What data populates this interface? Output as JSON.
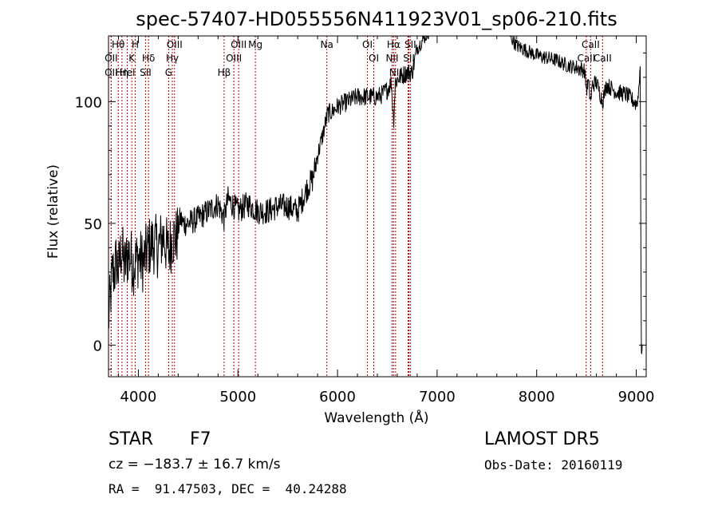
{
  "chart_data": {
    "type": "line",
    "title": "spec-57407-HD055556N411923V01_sp06-210.fits",
    "xlabel": "Wavelength (Å)",
    "ylabel": "Flux (relative)",
    "xlim": [
      3700,
      9100
    ],
    "ylim": [
      -13,
      127
    ],
    "xticks": [
      4000,
      5000,
      6000,
      7000,
      8000,
      9000
    ],
    "yticks": [
      0,
      50,
      100
    ],
    "grid": false,
    "series": [
      {
        "x": [
          3700,
          3720,
          3740,
          3760,
          3780,
          3800,
          3830,
          3860,
          3900,
          3950,
          4000,
          4050,
          4100,
          4150,
          4200,
          4250,
          4300,
          4340,
          4380,
          4420,
          4450,
          4500,
          4600,
          4700,
          4800,
          4860,
          4900,
          5000,
          5100,
          5200,
          5300,
          5400,
          5500,
          5550,
          5600,
          5650,
          5700,
          5750,
          5800,
          5850,
          5900,
          5950,
          6000,
          6100,
          6200,
          6300,
          6400,
          6450,
          6500,
          6540,
          6563,
          6580,
          6620,
          6700,
          6750,
          6800,
          6850,
          6900,
          6950,
          7000,
          7050,
          7100,
          7150,
          7200,
          7250,
          7300,
          7350,
          7400,
          7450,
          7500,
          7550,
          7600,
          7650,
          7700,
          7750,
          7800,
          7900,
          8000,
          8100,
          8200,
          8300,
          8400,
          8480,
          8500,
          8520,
          8542,
          8560,
          8600,
          8662,
          8700,
          8800,
          8900,
          8980,
          9000,
          9020,
          9040,
          9050,
          9060
        ],
        "y": [
          10,
          20,
          30,
          30,
          35,
          30,
          40,
          32,
          38,
          33,
          36,
          34,
          40,
          42,
          40,
          45,
          38,
          44,
          44,
          52,
          50,
          50,
          52,
          55,
          58,
          52,
          60,
          55,
          58,
          55,
          55,
          57,
          57,
          56,
          55,
          60,
          65,
          68,
          78,
          86,
          95,
          96,
          98,
          100,
          102,
          102,
          102,
          103,
          105,
          108,
          92,
          108,
          110,
          112,
          112,
          122,
          125,
          128,
          131,
          133,
          136,
          138,
          141,
          141,
          141,
          140,
          139,
          137,
          134,
          133,
          131,
          131,
          130,
          130,
          126,
          123,
          121,
          119,
          118,
          117,
          115,
          114,
          113,
          105,
          108,
          100,
          107,
          108,
          100,
          107,
          104,
          103,
          100,
          99,
          102,
          116,
          -1,
          -1
        ]
      }
    ],
    "spectral_lines": [
      {
        "label": "Hθ",
        "x": 3798
      },
      {
        "label": "OII",
        "x": 3727
      },
      {
        "label": "OII",
        "x": 3727
      },
      {
        "label": "Hη",
        "x": 3835
      },
      {
        "label": "K",
        "x": 3934
      },
      {
        "label": "HeI",
        "x": 3889
      },
      {
        "label": "H",
        "x": 3969
      },
      {
        "label": "Hδ",
        "x": 4102
      },
      {
        "label": "SII",
        "x": 4072
      },
      {
        "label": "OIII",
        "x": 4363
      },
      {
        "label": "Hγ",
        "x": 4341
      },
      {
        "label": "G",
        "x": 4304
      },
      {
        "label": "OIII",
        "x": 5007
      },
      {
        "label": "OIII",
        "x": 4959
      },
      {
        "label": "Hβ",
        "x": 4861
      },
      {
        "label": "Mg",
        "x": 5175
      },
      {
        "label": "Na",
        "x": 5893
      },
      {
        "label": "OI",
        "x": 6300
      },
      {
        "label": "OI",
        "x": 6364
      },
      {
        "label": "Hα",
        "x": 6563
      },
      {
        "label": "NII",
        "x": 6548
      },
      {
        "label": "NII",
        "x": 6583
      },
      {
        "label": "SII",
        "x": 6717
      },
      {
        "label": "Li",
        "x": 6708
      },
      {
        "label": "SII",
        "x": 6731
      },
      {
        "label": "CaII",
        "x": 8542
      },
      {
        "label": "CaII",
        "x": 8498
      },
      {
        "label": "CaII",
        "x": 8662
      }
    ]
  },
  "info": {
    "type_label": "STAR",
    "subclass": "F7",
    "survey": "LAMOST DR5",
    "cz": "cz = −183.7 ± 16.7 km/s",
    "obs_date": "Obs-Date: 20160119",
    "coords": "RA =  91.47503, DEC =  40.24288"
  },
  "colors": {
    "line_marker": "#c00000",
    "spectrum": "#000000",
    "axes": "#000000"
  }
}
